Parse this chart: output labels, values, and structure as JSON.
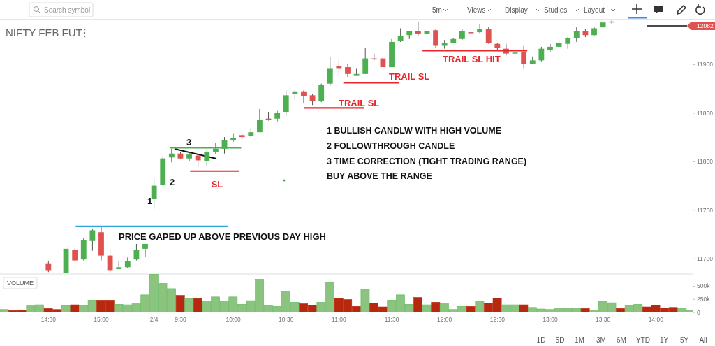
{
  "chart_data": [
    {
      "type": "candlestick",
      "title": "NIFTY FEB FUT",
      "categories": [
        null,
        null,
        null,
        null,
        null,
        "14:30",
        null,
        null,
        null,
        null,
        null,
        "15:00",
        null,
        null,
        null,
        null,
        null,
        "2/4",
        null,
        null,
        "9:30",
        null,
        null,
        null,
        null,
        null,
        "10:00",
        null,
        null,
        null,
        null,
        null,
        "10:30",
        null,
        null,
        null,
        null,
        null,
        "11:00",
        null,
        null,
        null,
        null,
        null,
        "11:30",
        null,
        null,
        null,
        null,
        null,
        "12:00",
        null,
        null,
        null,
        null,
        null,
        "12:30",
        null,
        null,
        null,
        null,
        null,
        "13:00",
        null,
        null,
        null,
        null,
        null,
        "13:30",
        null,
        null,
        null,
        null,
        null,
        "14:00",
        null,
        null,
        null,
        null
      ],
      "ohlc": [
        null,
        null,
        null,
        null,
        null,
        [
          11695,
          11697,
          11686,
          11688
        ],
        null,
        [
          11685,
          11713,
          11684,
          11710
        ],
        [
          11709,
          11710,
          11697,
          11698
        ],
        [
          11699,
          11721,
          11698,
          11719
        ],
        [
          11718,
          11730,
          11708,
          11729
        ],
        [
          11727,
          11733,
          11698,
          11703
        ],
        [
          11703,
          11709,
          11685,
          11688
        ],
        [
          11689,
          11697,
          11689,
          11691
        ],
        [
          11691,
          11701,
          11690,
          11697
        ],
        [
          11699,
          11715,
          11698,
          11709
        ],
        [
          11710,
          11715,
          11702,
          11715
        ],
        [
          11761,
          11782,
          11751,
          11775
        ],
        [
          11776,
          11804,
          11775,
          11803
        ],
        [
          11804,
          11813,
          11799,
          11808
        ],
        [
          11808,
          11810,
          11802,
          11803
        ],
        [
          11803,
          11809,
          11800,
          11807
        ],
        [
          11806,
          11807,
          11794,
          11801
        ],
        [
          11800,
          11811,
          11795,
          11810
        ],
        [
          11810,
          11819,
          11807,
          11813
        ],
        [
          11813,
          11825,
          11808,
          11822
        ],
        [
          11822,
          11829,
          11820,
          11824
        ],
        [
          11827,
          11829,
          11823,
          11825
        ],
        [
          11826,
          11834,
          11825,
          11830
        ],
        [
          11830,
          11854,
          11830,
          11843
        ],
        [
          11844,
          11851,
          11842,
          11843
        ],
        [
          11844,
          11852,
          11841,
          11850
        ],
        [
          11851,
          11873,
          11847,
          11868
        ],
        [
          11869,
          11873,
          11863,
          11872
        ],
        [
          11872,
          11873,
          11860,
          11867
        ],
        [
          11868,
          11869,
          11858,
          11862
        ],
        [
          11862,
          11880,
          11861,
          11879
        ],
        [
          11880,
          11908,
          11878,
          11896
        ],
        [
          11898,
          11905,
          11889,
          11896
        ],
        [
          11897,
          11900,
          11887,
          11890
        ],
        [
          11888,
          11896,
          11888,
          11890
        ],
        [
          11890,
          11917,
          11890,
          11906
        ],
        [
          11906,
          11911,
          11904,
          11905
        ],
        [
          11906,
          11909,
          11897,
          11897
        ],
        [
          11897,
          11926,
          11897,
          11923
        ],
        [
          11924,
          11937,
          11923,
          11929
        ],
        [
          11930,
          11934,
          11926,
          11934
        ],
        [
          11934,
          11944,
          11929,
          11931
        ],
        [
          11931,
          11935,
          11928,
          11934
        ],
        [
          11935,
          11936,
          11917,
          11919
        ],
        [
          11919,
          11925,
          11916,
          11922
        ],
        [
          11922,
          11927,
          11922,
          11926
        ],
        [
          11926,
          11936,
          11925,
          11934
        ],
        [
          11933,
          11938,
          11931,
          11932
        ],
        [
          11933,
          11941,
          11932,
          11936
        ],
        [
          11936,
          11938,
          11921,
          11922
        ],
        [
          11921,
          11922,
          11914,
          11917
        ],
        [
          11916,
          11921,
          11909,
          11911
        ],
        [
          11911,
          11918,
          11910,
          11912
        ],
        [
          11913,
          11919,
          11896,
          11900
        ],
        [
          11900,
          11908,
          11900,
          11904
        ],
        [
          11904,
          11918,
          11903,
          11916
        ],
        [
          11915,
          11921,
          11913,
          11918
        ],
        [
          11918,
          11925,
          11917,
          11922
        ],
        [
          11921,
          11928,
          11916,
          11927
        ],
        [
          11927,
          11938,
          11923,
          11934
        ],
        [
          11934,
          11936,
          11928,
          11930
        ],
        [
          11930,
          11938,
          11929,
          11937
        ],
        [
          11938,
          11944,
          11937,
          11943
        ],
        [
          11943,
          11946,
          11941,
          11944
        ],
        null,
        null,
        null,
        null,
        null,
        null,
        null,
        null,
        null
      ],
      "ylim": [
        11684,
        11946
      ],
      "yticks": [
        11700,
        11750,
        11800,
        11850,
        11900
      ],
      "ref_lines": [
        {
          "axis": "y",
          "value": 11733,
          "label": "PRICE GAPED UP ABOVE PREVIOUS DAY HIGH",
          "color": "#29a8e0"
        },
        {
          "axis": "y",
          "value": 11814,
          "color": "#4caf50"
        },
        {
          "axis": "y",
          "value": 11790,
          "label": "SL",
          "color": "#e8262b"
        },
        {
          "axis": "y",
          "value": 11855,
          "label": "TRAIL SL",
          "color": "#e8262b"
        },
        {
          "axis": "y",
          "value": 11881,
          "label": "TRAIL SL",
          "color": "#e8262b"
        },
        {
          "axis": "y",
          "value": 11914,
          "label": "TRAIL SL HIT",
          "color": "#e8262b"
        }
      ],
      "annotations": [
        "1",
        "2",
        "1 BULLISH CANDLW WITH HIGH VOLUME",
        "2 FOLLOWTHROUGH CANDLE",
        "3 TIME CORRECTION (TIGHT TRADING RANGE)",
        "BUY ABOVE THE RANGE",
        "12082",
        "Search symbol",
        "5m",
        "Views",
        "Display",
        "Studies",
        "Layout",
        "1D",
        "5D",
        "1M",
        "3M",
        "6M",
        "YTD",
        "1Y",
        "5Y",
        "All",
        "3"
      ]
    },
    {
      "type": "bar",
      "title": "VOLUME",
      "tick_labels": "y",
      "categories": [
        null,
        null,
        null,
        null,
        null,
        null,
        null,
        null,
        null,
        null,
        null,
        null,
        null,
        null,
        null,
        null,
        null,
        null,
        null,
        null,
        null,
        null,
        null,
        null,
        null,
        null,
        null,
        null,
        null,
        null,
        null,
        null,
        null,
        null,
        null,
        null,
        null,
        null,
        null,
        null,
        null,
        null,
        null,
        null,
        null,
        null,
        null,
        null,
        null,
        null,
        null,
        null,
        null,
        null,
        null,
        null,
        null,
        null,
        null,
        null,
        null,
        null,
        null,
        null,
        null,
        null,
        null,
        null,
        null,
        null,
        null,
        null,
        null,
        null,
        null,
        null,
        null,
        null,
        null
      ],
      "values": [
        50000,
        30000,
        40000,
        120000,
        140000,
        70000,
        50000,
        130000,
        140000,
        130000,
        230000,
        230000,
        230000,
        150000,
        140000,
        160000,
        330000,
        730000,
        550000,
        450000,
        320000,
        260000,
        260000,
        200000,
        290000,
        210000,
        290000,
        150000,
        220000,
        630000,
        130000,
        110000,
        390000,
        190000,
        160000,
        130000,
        190000,
        570000,
        270000,
        240000,
        110000,
        430000,
        170000,
        100000,
        230000,
        330000,
        150000,
        280000,
        140000,
        190000,
        160000,
        50000,
        110000,
        110000,
        210000,
        170000,
        270000,
        140000,
        140000,
        140000,
        90000,
        60000,
        50000,
        80000,
        70000,
        80000,
        70000,
        40000,
        210000,
        180000,
        70000,
        130000,
        150000,
        100000,
        130000,
        80000,
        90000,
        80000,
        40000
      ],
      "colors": [
        "#8bc47e",
        "#b7280e",
        "#b7280e",
        "#8bc47e",
        "#8bc47e",
        "#b7280e",
        "#b7280e",
        "#8bc47e",
        "#b7280e",
        "#8bc47e",
        "#8bc47e",
        "#b7280e",
        "#b7280e",
        "#8bc47e",
        "#8bc47e",
        "#8bc47e",
        "#8bc47e",
        "#8bc47e",
        "#8bc47e",
        "#8bc47e",
        "#b7280e",
        "#8bc47e",
        "#b7280e",
        "#8bc47e",
        "#8bc47e",
        "#8bc47e",
        "#8bc47e",
        "#8bc47e",
        "#8bc47e",
        "#8bc47e",
        "#8bc47e",
        "#8bc47e",
        "#8bc47e",
        "#8bc47e",
        "#b7280e",
        "#b7280e",
        "#8bc47e",
        "#8bc47e",
        "#b7280e",
        "#b7280e",
        "#b7280e",
        "#8bc47e",
        "#b7280e",
        "#b7280e",
        "#8bc47e",
        "#8bc47e",
        "#8bc47e",
        "#b7280e",
        "#8bc47e",
        "#b7280e",
        "#8bc47e",
        "#8bc47e",
        "#8bc47e",
        "#b7280e",
        "#8bc47e",
        "#b7280e",
        "#b7280e",
        "#8bc47e",
        "#8bc47e",
        "#b7280e",
        "#8bc47e",
        "#8bc47e",
        "#8bc47e",
        "#8bc47e",
        "#8bc47e",
        "#8bc47e",
        "#b7280e",
        "#8bc47e",
        "#8bc47e",
        "#8bc47e",
        "#b7280e",
        "#8bc47e",
        "#8bc47e",
        "#b7280e",
        "#b7280e",
        "#b7280e",
        "#b7280e",
        "#8bc47e",
        "#8bc47e"
      ],
      "ylim": [
        0,
        730000
      ],
      "yticks": [
        0,
        {
          "value": 250000,
          "label": "250k"
        },
        {
          "value": 500000,
          "label": "500k"
        }
      ]
    }
  ]
}
